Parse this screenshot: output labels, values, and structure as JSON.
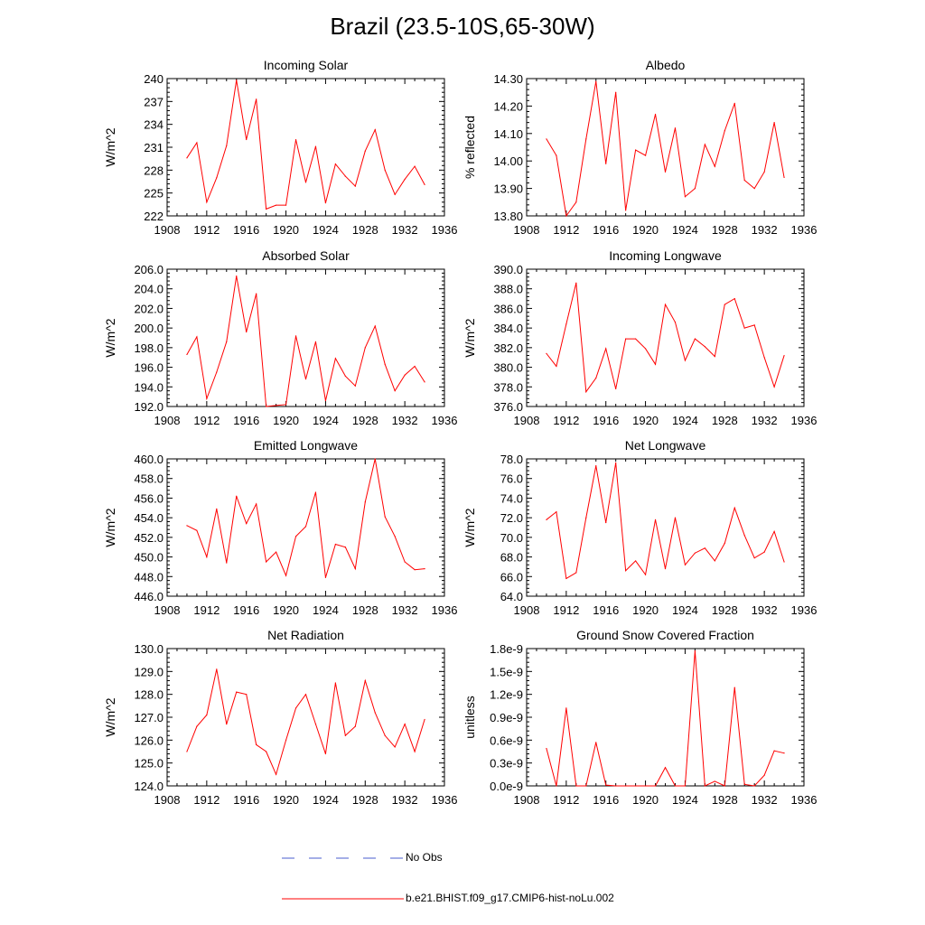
{
  "title": "Brazil (23.5-10S,65-30W)",
  "colors": {
    "model": "#ff0000",
    "obs": "#4a5ecf",
    "axis": "#000000"
  },
  "legend": [
    {
      "label": "No Obs",
      "style": "dashed",
      "color": "#4a5ecf"
    },
    {
      "label": "b.e21.BHIST.f09_g17.CMIP6-hist-noLu.002",
      "style": "solid",
      "color": "#ff0000"
    }
  ],
  "chart_data": [
    {
      "type": "line",
      "title": "Incoming Solar",
      "ylabel": "W/m^2",
      "xlim": [
        1908,
        1936
      ],
      "ylim": [
        222,
        240
      ],
      "xticks": [
        "1908",
        "1912",
        "1916",
        "1920",
        "1924",
        "1928",
        "1932",
        "1936"
      ],
      "yticks": [
        "222",
        "225",
        "228",
        "231",
        "234",
        "237",
        "240"
      ],
      "x": [
        1910,
        1911,
        1912,
        1913,
        1914,
        1915,
        1916,
        1917,
        1918,
        1919,
        1920,
        1921,
        1922,
        1923,
        1924,
        1925,
        1926,
        1927,
        1928,
        1929,
        1930,
        1931,
        1932,
        1933,
        1934
      ],
      "series": [
        {
          "name": "b.e21.BHIST.f09_g17.CMIP6-hist-noLu.002",
          "values": [
            229.6,
            231.6,
            223.8,
            227.0,
            231.2,
            239.8,
            232.0,
            237.3,
            222.9,
            223.4,
            223.4,
            232.0,
            226.4,
            231.1,
            223.7,
            228.8,
            227.2,
            225.9,
            230.5,
            233.3,
            228.0,
            224.8,
            226.8,
            228.5,
            226.1
          ]
        }
      ]
    },
    {
      "type": "line",
      "title": "Albedo",
      "ylabel": "% reflected",
      "xlim": [
        1908,
        1936
      ],
      "ylim": [
        13.8,
        14.3
      ],
      "xticks": [
        "1908",
        "1912",
        "1916",
        "1920",
        "1924",
        "1928",
        "1932",
        "1936"
      ],
      "yticks": [
        "13.80",
        "13.90",
        "14.00",
        "14.10",
        "14.20",
        "14.30"
      ],
      "x": [
        1910,
        1911,
        1912,
        1913,
        1914,
        1915,
        1916,
        1917,
        1918,
        1919,
        1920,
        1921,
        1922,
        1923,
        1924,
        1925,
        1926,
        1927,
        1928,
        1929,
        1930,
        1931,
        1932,
        1933,
        1934
      ],
      "series": [
        {
          "name": "b.e21.BHIST.f09_g17.CMIP6-hist-noLu.002",
          "values": [
            14.08,
            14.02,
            13.8,
            13.85,
            14.08,
            14.29,
            13.99,
            14.25,
            13.82,
            14.04,
            14.02,
            14.17,
            13.96,
            14.12,
            13.87,
            13.9,
            14.06,
            13.98,
            14.11,
            14.21,
            13.93,
            13.9,
            13.96,
            14.14,
            13.94
          ]
        }
      ]
    },
    {
      "type": "line",
      "title": "Absorbed Solar",
      "ylabel": "W/m^2",
      "xlim": [
        1908,
        1936
      ],
      "ylim": [
        192,
        206
      ],
      "xticks": [
        "1908",
        "1912",
        "1916",
        "1920",
        "1924",
        "1928",
        "1932",
        "1936"
      ],
      "yticks": [
        "192.0",
        "194.0",
        "196.0",
        "198.0",
        "200.0",
        "202.0",
        "204.0",
        "206.0"
      ],
      "x": [
        1910,
        1911,
        1912,
        1913,
        1914,
        1915,
        1916,
        1917,
        1918,
        1919,
        1920,
        1921,
        1922,
        1923,
        1924,
        1925,
        1926,
        1927,
        1928,
        1929,
        1930,
        1931,
        1932,
        1933,
        1934
      ],
      "series": [
        {
          "name": "b.e21.BHIST.f09_g17.CMIP6-hist-noLu.002",
          "values": [
            197.3,
            199.1,
            192.8,
            195.5,
            198.6,
            205.3,
            199.6,
            203.5,
            192.0,
            192.1,
            192.2,
            199.2,
            194.8,
            198.6,
            192.6,
            196.9,
            195.1,
            194.1,
            198.0,
            200.2,
            196.3,
            193.6,
            195.2,
            196.1,
            194.5
          ]
        }
      ]
    },
    {
      "type": "line",
      "title": "Incoming Longwave",
      "ylabel": "W/m^2",
      "xlim": [
        1908,
        1936
      ],
      "ylim": [
        376,
        390
      ],
      "xticks": [
        "1908",
        "1912",
        "1916",
        "1920",
        "1924",
        "1928",
        "1932",
        "1936"
      ],
      "yticks": [
        "376.0",
        "378.0",
        "380.0",
        "382.0",
        "384.0",
        "386.0",
        "388.0",
        "390.0"
      ],
      "x": [
        1910,
        1911,
        1912,
        1913,
        1914,
        1915,
        1916,
        1917,
        1918,
        1919,
        1920,
        1921,
        1922,
        1923,
        1924,
        1925,
        1926,
        1927,
        1928,
        1929,
        1930,
        1931,
        1932,
        1933,
        1934
      ],
      "series": [
        {
          "name": "b.e21.BHIST.f09_g17.CMIP6-hist-noLu.002",
          "values": [
            381.4,
            380.1,
            384.4,
            388.6,
            377.5,
            378.9,
            381.9,
            377.8,
            382.9,
            382.9,
            381.9,
            380.3,
            386.4,
            384.6,
            380.7,
            382.9,
            382.1,
            381.1,
            386.4,
            387.0,
            384.0,
            384.3,
            381.0,
            378.0,
            381.2
          ]
        }
      ]
    },
    {
      "type": "line",
      "title": "Emitted Longwave",
      "ylabel": "W/m^2",
      "xlim": [
        1908,
        1936
      ],
      "ylim": [
        446,
        460
      ],
      "xticks": [
        "1908",
        "1912",
        "1916",
        "1920",
        "1924",
        "1928",
        "1932",
        "1936"
      ],
      "yticks": [
        "446.0",
        "448.0",
        "450.0",
        "452.0",
        "454.0",
        "456.0",
        "458.0",
        "460.0"
      ],
      "x": [
        1910,
        1911,
        1912,
        1913,
        1914,
        1915,
        1916,
        1917,
        1918,
        1919,
        1920,
        1921,
        1922,
        1923,
        1924,
        1925,
        1926,
        1927,
        1928,
        1929,
        1930,
        1931,
        1932,
        1933,
        1934
      ],
      "series": [
        {
          "name": "b.e21.BHIST.f09_g17.CMIP6-hist-noLu.002",
          "values": [
            453.2,
            452.7,
            450.0,
            454.9,
            449.4,
            456.2,
            453.4,
            455.4,
            449.5,
            450.5,
            448.1,
            452.1,
            453.1,
            456.6,
            447.9,
            451.3,
            451.0,
            448.8,
            455.6,
            460.0,
            454.1,
            452.1,
            449.5,
            448.7,
            448.8
          ]
        }
      ]
    },
    {
      "type": "line",
      "title": "Net Longwave",
      "ylabel": "W/m^2",
      "xlim": [
        1908,
        1936
      ],
      "ylim": [
        64,
        78
      ],
      "xticks": [
        "1908",
        "1912",
        "1916",
        "1920",
        "1924",
        "1928",
        "1932",
        "1936"
      ],
      "yticks": [
        "64.0",
        "66.0",
        "68.0",
        "70.0",
        "72.0",
        "74.0",
        "76.0",
        "78.0"
      ],
      "x": [
        1910,
        1911,
        1912,
        1913,
        1914,
        1915,
        1916,
        1917,
        1918,
        1919,
        1920,
        1921,
        1922,
        1923,
        1924,
        1925,
        1926,
        1927,
        1928,
        1929,
        1930,
        1931,
        1932,
        1933,
        1934
      ],
      "series": [
        {
          "name": "b.e21.BHIST.f09_g17.CMIP6-hist-noLu.002",
          "values": [
            71.8,
            72.6,
            65.8,
            66.4,
            72.0,
            77.3,
            71.5,
            77.6,
            66.6,
            67.6,
            66.2,
            71.8,
            66.8,
            72.0,
            67.2,
            68.4,
            68.9,
            67.6,
            69.4,
            73.0,
            70.2,
            67.9,
            68.5,
            70.6,
            67.5
          ]
        }
      ]
    },
    {
      "type": "line",
      "title": "Net Radiation",
      "ylabel": "W/m^2",
      "xlim": [
        1908,
        1936
      ],
      "ylim": [
        124,
        130
      ],
      "xticks": [
        "1908",
        "1912",
        "1916",
        "1920",
        "1924",
        "1928",
        "1932",
        "1936"
      ],
      "yticks": [
        "124.0",
        "125.0",
        "126.0",
        "127.0",
        "128.0",
        "129.0",
        "130.0"
      ],
      "x": [
        1910,
        1911,
        1912,
        1913,
        1914,
        1915,
        1916,
        1917,
        1918,
        1919,
        1920,
        1921,
        1922,
        1923,
        1924,
        1925,
        1926,
        1927,
        1928,
        1929,
        1930,
        1931,
        1932,
        1933,
        1934
      ],
      "series": [
        {
          "name": "b.e21.BHIST.f09_g17.CMIP6-hist-noLu.002",
          "values": [
            125.5,
            126.6,
            127.1,
            129.1,
            126.7,
            128.1,
            128.0,
            125.8,
            125.5,
            124.5,
            126.0,
            127.4,
            128.0,
            126.7,
            125.4,
            128.5,
            126.2,
            126.6,
            128.6,
            127.2,
            126.2,
            125.7,
            126.7,
            125.5,
            126.9
          ]
        }
      ]
    },
    {
      "type": "line",
      "title": "Ground Snow Covered Fraction",
      "ylabel": "unitless",
      "xlim": [
        1908,
        1936
      ],
      "ylim": [
        0,
        1.8e-09
      ],
      "xticks": [
        "1908",
        "1912",
        "1916",
        "1920",
        "1924",
        "1928",
        "1932",
        "1936"
      ],
      "yticks": [
        "0.0e-9",
        "0.3e-9",
        "0.6e-9",
        "0.9e-9",
        "1.2e-9",
        "1.5e-9",
        "1.8e-9"
      ],
      "x": [
        1910,
        1911,
        1912,
        1913,
        1914,
        1915,
        1916,
        1917,
        1918,
        1919,
        1920,
        1921,
        1922,
        1923,
        1924,
        1925,
        1926,
        1927,
        1928,
        1929,
        1930,
        1931,
        1932,
        1933,
        1934
      ],
      "series": [
        {
          "name": "b.e21.BHIST.f09_g17.CMIP6-hist-noLu.002",
          "values": [
            4.9e-10,
            0.0,
            1.02e-09,
            0.0,
            0.0,
            5.7e-10,
            1e-11,
            0.0,
            0.0,
            0.0,
            0.0,
            0.0,
            2.4e-10,
            0.0,
            0.0,
            1.77e-09,
            0.0,
            6e-11,
            0.0,
            1.29e-09,
            2e-11,
            0.0,
            1.4e-10,
            4.6e-10,
            4.3e-10
          ]
        }
      ]
    }
  ]
}
